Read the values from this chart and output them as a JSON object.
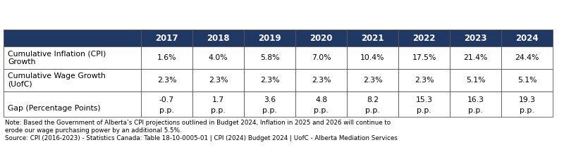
{
  "header_bg": "#1f3864",
  "header_text_color": "#ffffff",
  "row_bg": "#ffffff",
  "border_color": "#555555",
  "years": [
    "2017",
    "2018",
    "2019",
    "2020",
    "2021",
    "2022",
    "2023",
    "2024"
  ],
  "row1_label": "Cumulative Inflation (CPI)\nGrowth",
  "row1_values": [
    "1.6%",
    "4.0%",
    "5.8%",
    "7.0%",
    "10.4%",
    "17.5%",
    "21.4%",
    "24.4%"
  ],
  "row2_label": "Cumulative Wage Growth\n(UofC)",
  "row2_values": [
    "2.3%",
    "2.3%",
    "2.3%",
    "2.3%",
    "2.3%",
    "2.3%",
    "5.1%",
    "5.1%"
  ],
  "row3_label": "Gap (Percentage Points)",
  "row3_values_top": [
    "-0.7",
    "1.7",
    "3.6",
    "4.8",
    "8.2",
    "15.3",
    "16.3",
    "19.3"
  ],
  "row3_values_bot": [
    "p.p.",
    "p.p.",
    "p.p.",
    "p.p.",
    "p.p.",
    "p.p.",
    "p.p.",
    "p.p."
  ],
  "note_line1": "Note: Based the Government of Alberta’s CPI projections outlined in Budget 2024, Inflation in 2025 and 2026 will continue to",
  "note_line2": "erode our wage purchasing power by an additional 5.5%.",
  "source_text": "Source: CPI (2016-2023) - Statistics Canada: Table 18-10-0005-01 | CPI (2024) Budget 2024 | UofC - Alberta Mediation Services",
  "fig_width": 8.0,
  "fig_height": 2.16,
  "dpi": 100
}
